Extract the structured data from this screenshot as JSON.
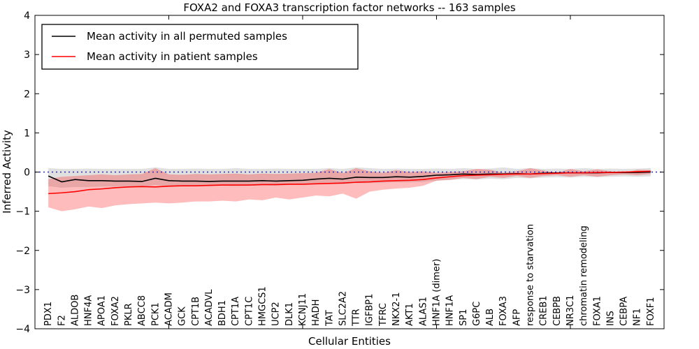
{
  "chart_data": {
    "type": "line",
    "title": "FOXA2 and FOXA3 transcription factor networks -- 163 samples",
    "xlabel": "Cellular Entities",
    "ylabel": "Inferred Activity",
    "ylim": [
      -4,
      4
    ],
    "xlim": [
      0,
      47
    ],
    "grid": false,
    "legend_position": "upper left",
    "yticks": [
      {
        "label": "4",
        "value": 4
      },
      {
        "label": "3",
        "value": 3
      },
      {
        "label": "2",
        "value": 2
      },
      {
        "label": "1",
        "value": 1
      },
      {
        "label": "0",
        "value": 0
      },
      {
        "label": "−1",
        "value": -1
      },
      {
        "label": "−2",
        "value": -2
      },
      {
        "label": "−3",
        "value": -3
      },
      {
        "label": "−4",
        "value": -4
      }
    ],
    "xticks_unlabeled": [
      10,
      20,
      30,
      40
    ],
    "zero_line": {
      "y": 0,
      "style": "dotted",
      "color": "#2a2ab4"
    },
    "categories": [
      "PDX1",
      "F2",
      "ALDOB",
      "HNF4A",
      "APOA1",
      "FOXA2",
      "PKLR",
      "ABCC8",
      "PCK1",
      "ACADM",
      "GCK",
      "CPT1B",
      "ACADVL",
      "BDH1",
      "CPT1A",
      "CPT1C",
      "HMGCS1",
      "UCP2",
      "DLK1",
      "KCNJ11",
      "HADH",
      "TAT",
      "SLC2A2",
      "TTR",
      "IGFBP1",
      "TFRC",
      "NKX2-1",
      "AKT1",
      "ALAS1",
      "HNF1A (dimer)",
      "HNF1A",
      "SP1",
      "G6PC",
      "ALB",
      "FOXA3",
      "AFP",
      "response to starvation",
      "CREB1",
      "CEBPB",
      "NR3C1",
      "chromatin remodeling",
      "FOXA1",
      "INS",
      "CEBPA",
      "NF1",
      "FOXF1"
    ],
    "series": [
      {
        "name": "Mean activity in all permuted samples",
        "color": "#000000",
        "band_color": "#999999",
        "band_opacity": 0.3,
        "values": [
          -0.1,
          -0.25,
          -0.19,
          -0.22,
          -0.22,
          -0.23,
          -0.23,
          -0.24,
          -0.16,
          -0.22,
          -0.23,
          -0.23,
          -0.24,
          -0.23,
          -0.23,
          -0.23,
          -0.22,
          -0.23,
          -0.22,
          -0.21,
          -0.18,
          -0.16,
          -0.18,
          -0.13,
          -0.14,
          -0.14,
          -0.12,
          -0.13,
          -0.11,
          -0.08,
          -0.07,
          -0.05,
          -0.06,
          -0.05,
          -0.05,
          -0.04,
          -0.05,
          -0.03,
          -0.02,
          -0.02,
          -0.02,
          -0.02,
          -0.01,
          -0.01,
          -0.01,
          0.0
        ],
        "band_upper": [
          0.1,
          0.08,
          0.08,
          0.09,
          0.08,
          0.08,
          0.08,
          0.08,
          0.12,
          0.08,
          0.08,
          0.09,
          0.08,
          0.08,
          0.1,
          0.08,
          0.08,
          0.09,
          0.08,
          0.08,
          0.08,
          0.1,
          0.08,
          0.12,
          0.1,
          0.08,
          0.09,
          0.08,
          0.08,
          0.09,
          0.08,
          0.1,
          0.08,
          0.09,
          0.12,
          0.08,
          0.1,
          0.08,
          0.09,
          0.08,
          0.1,
          0.08,
          0.09,
          0.08,
          0.09,
          0.1
        ],
        "band_lower": [
          -0.36,
          -0.4,
          -0.38,
          -0.38,
          -0.37,
          -0.37,
          -0.36,
          -0.37,
          -0.33,
          -0.36,
          -0.35,
          -0.36,
          -0.36,
          -0.35,
          -0.36,
          -0.35,
          -0.34,
          -0.35,
          -0.33,
          -0.32,
          -0.3,
          -0.3,
          -0.31,
          -0.28,
          -0.28,
          -0.27,
          -0.26,
          -0.26,
          -0.25,
          -0.22,
          -0.2,
          -0.18,
          -0.19,
          -0.17,
          -0.18,
          -0.15,
          -0.16,
          -0.14,
          -0.13,
          -0.14,
          -0.12,
          -0.13,
          -0.12,
          -0.11,
          -0.12,
          -0.11
        ]
      },
      {
        "name": "Mean activity in patient samples",
        "color": "#ff0000",
        "band_color": "#ff2222",
        "band_opacity": 0.3,
        "values": [
          -0.55,
          -0.53,
          -0.5,
          -0.45,
          -0.43,
          -0.4,
          -0.38,
          -0.37,
          -0.38,
          -0.36,
          -0.35,
          -0.35,
          -0.34,
          -0.33,
          -0.33,
          -0.33,
          -0.32,
          -0.32,
          -0.31,
          -0.31,
          -0.3,
          -0.29,
          -0.28,
          -0.26,
          -0.25,
          -0.23,
          -0.22,
          -0.21,
          -0.19,
          -0.15,
          -0.12,
          -0.09,
          -0.08,
          -0.07,
          -0.06,
          -0.05,
          -0.05,
          -0.04,
          -0.03,
          -0.02,
          -0.02,
          -0.01,
          -0.01,
          0.0,
          0.01,
          0.02
        ],
        "band_upper": [
          -0.18,
          -0.12,
          -0.1,
          -0.08,
          -0.06,
          -0.08,
          -0.06,
          -0.05,
          0.1,
          -0.06,
          -0.07,
          -0.05,
          -0.06,
          -0.05,
          -0.04,
          -0.06,
          -0.04,
          -0.05,
          -0.04,
          -0.03,
          -0.02,
          0.08,
          -0.03,
          0.1,
          0.02,
          -0.02,
          0.05,
          0.0,
          0.02,
          -0.02,
          0.0,
          0.02,
          0.08,
          0.06,
          -0.02,
          0.02,
          0.1,
          0.04,
          -0.02,
          0.08,
          0.02,
          0.07,
          0.02,
          -0.02,
          0.06,
          0.05
        ],
        "band_lower": [
          -0.9,
          -1.0,
          -0.95,
          -0.88,
          -0.92,
          -0.85,
          -0.82,
          -0.8,
          -0.78,
          -0.8,
          -0.78,
          -0.75,
          -0.75,
          -0.73,
          -0.75,
          -0.7,
          -0.72,
          -0.65,
          -0.7,
          -0.65,
          -0.6,
          -0.62,
          -0.55,
          -0.68,
          -0.5,
          -0.45,
          -0.42,
          -0.4,
          -0.35,
          -0.22,
          -0.2,
          -0.15,
          -0.18,
          -0.12,
          -0.15,
          -0.1,
          -0.15,
          -0.1,
          -0.08,
          -0.12,
          -0.08,
          -0.12,
          -0.08,
          -0.06,
          -0.08,
          -0.05
        ]
      }
    ]
  }
}
